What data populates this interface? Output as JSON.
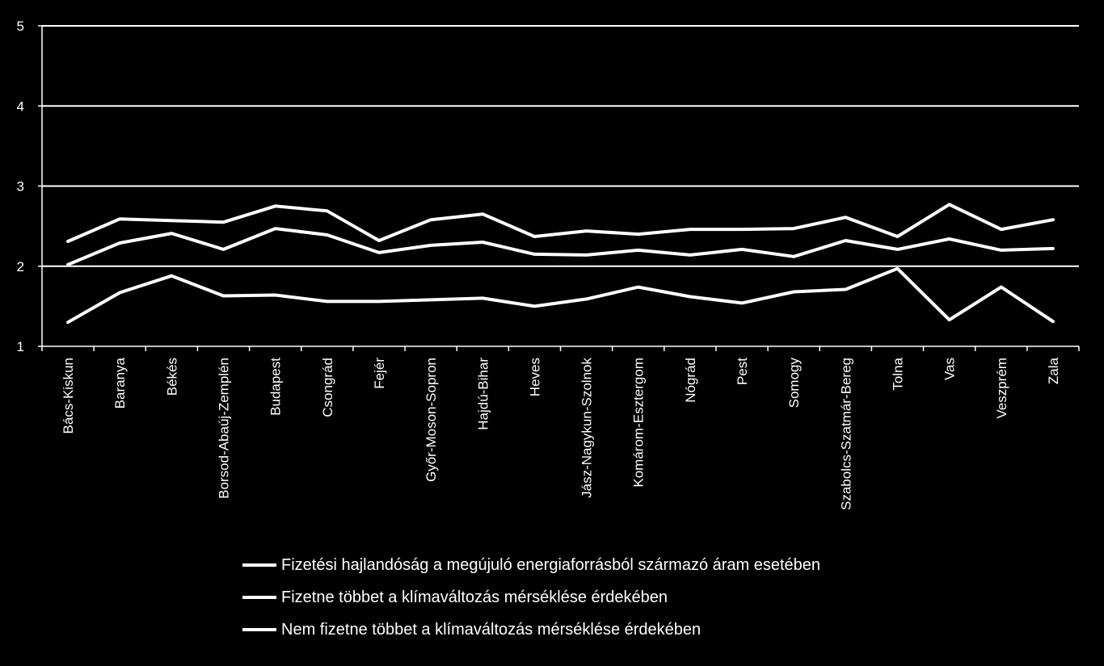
{
  "chart_data": {
    "type": "line",
    "categories": [
      "Bács-Kiskun",
      "Baranya",
      "Békés",
      "Borsod-Abaúj-Zemplén",
      "Budapest",
      "Csongrád",
      "Fejér",
      "Győr-Moson-Sopron",
      "Hajdú-Bihar",
      "Heves",
      "Jász-Nagykun-Szolnok",
      "Komárom-Esztergom",
      "Nógrád",
      "Pest",
      "Somogy",
      "Szabolcs-Szatmár-Bereg",
      "Tolna",
      "Vas",
      "Veszprém",
      "Zala"
    ],
    "series": [
      {
        "name": "Fizetési hajlandóság a megújuló energiaforrásból származó áram esetében",
        "values": [
          2.31,
          2.59,
          2.57,
          2.55,
          2.75,
          2.69,
          2.32,
          2.58,
          2.65,
          2.37,
          2.44,
          2.4,
          2.46,
          2.46,
          2.47,
          2.61,
          2.37,
          2.77,
          2.46,
          2.58
        ]
      },
      {
        "name": "Fizetne többet a klímaváltozás mérséklése érdekében",
        "values": [
          2.02,
          2.29,
          2.41,
          2.21,
          2.47,
          2.39,
          2.17,
          2.26,
          2.3,
          2.15,
          2.14,
          2.2,
          2.14,
          2.21,
          2.12,
          2.32,
          2.21,
          2.34,
          2.2,
          2.22
        ]
      },
      {
        "name": "Nem fizetne többet a klímaváltozás mérséklése érdekében",
        "values": [
          1.3,
          1.67,
          1.88,
          1.63,
          1.64,
          1.56,
          1.56,
          1.58,
          1.6,
          1.5,
          1.59,
          1.74,
          1.62,
          1.54,
          1.68,
          1.71,
          1.97,
          1.33,
          1.74,
          1.31
        ]
      }
    ],
    "ylim": [
      1,
      5
    ],
    "yticks": [
      1,
      2,
      3,
      4,
      5
    ],
    "grid": true,
    "legend_position": "bottom",
    "colors": {
      "background": "#000000",
      "lines": "#ffffff"
    }
  }
}
